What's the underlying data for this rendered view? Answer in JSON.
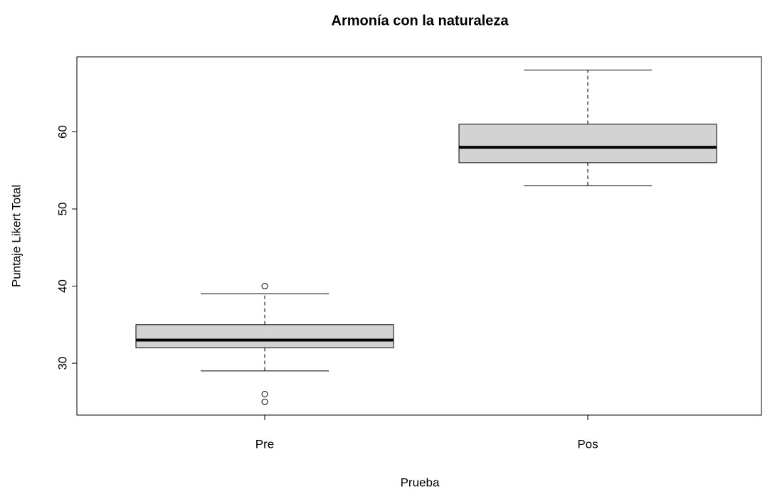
{
  "chart_data": {
    "type": "box",
    "title": "Armonía con la naturaleza",
    "x_label": "Prueba",
    "y_label": "Puntaje Likert Total",
    "categories": [
      "Pre",
      "Pos"
    ],
    "boxes": [
      {
        "whislo": 29,
        "q1": 32,
        "med": 33,
        "q3": 35,
        "whishi": 39,
        "fliers": [
          40,
          26,
          25
        ]
      },
      {
        "whislo": 53,
        "q1": 56,
        "med": 58,
        "q3": 61,
        "whishi": 68,
        "fliers": []
      }
    ],
    "color": "#d3d3d3",
    "ylim": [
      23.28,
      69.72
    ],
    "yticks": [
      30,
      40,
      50,
      60
    ]
  }
}
